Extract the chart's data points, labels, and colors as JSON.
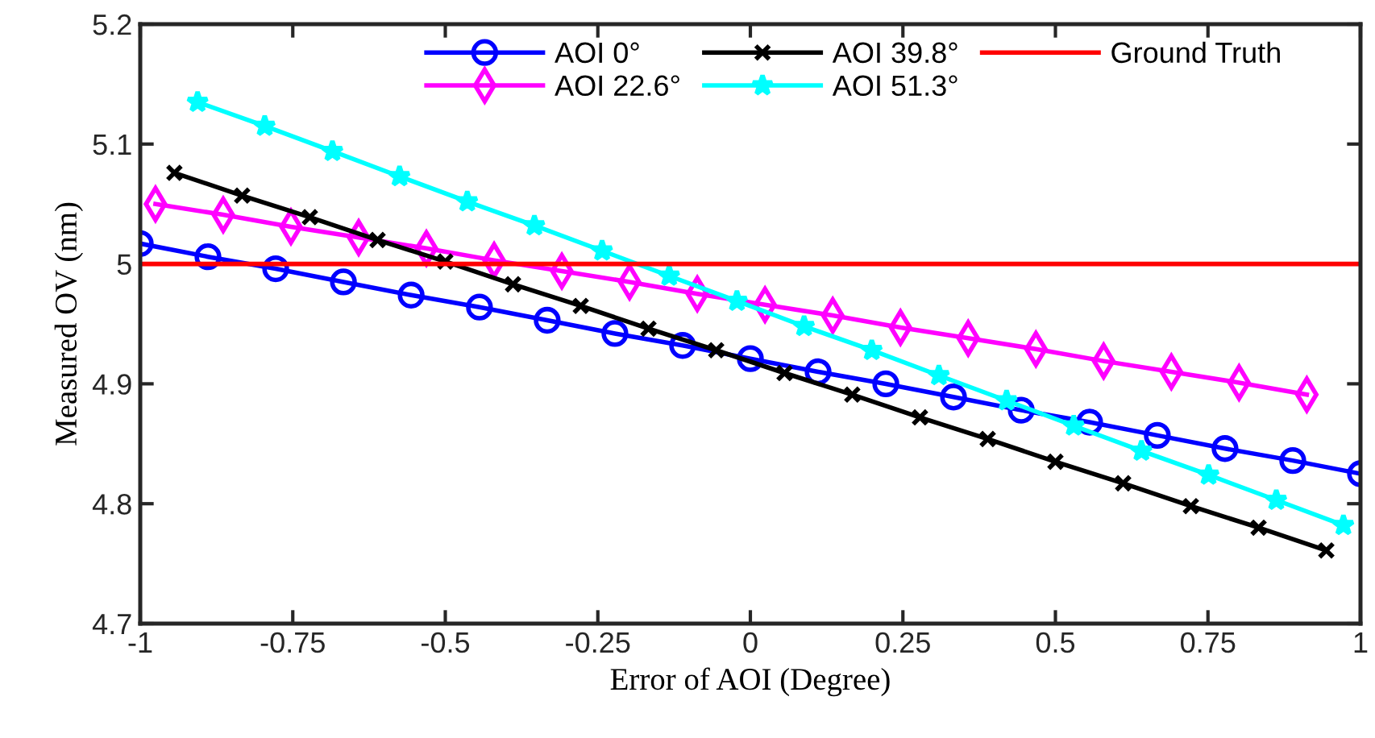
{
  "chart_data": {
    "type": "line",
    "xlabel": "Error of AOI (Degree)",
    "ylabel": "Measured OV (nm)",
    "xlim": [
      -1,
      1
    ],
    "xticks": [
      -1,
      -0.75,
      -0.5,
      -0.25,
      0,
      0.25,
      0.5,
      0.75,
      1
    ],
    "ylim": [
      4.7,
      5.2
    ],
    "yticks": [
      4.7,
      4.8,
      4.9,
      5,
      5.1,
      5.2
    ],
    "grid": false,
    "legend": "top",
    "line_style": "solid",
    "series": [
      {
        "name": "AOI 0°",
        "color": "#0000ff",
        "marker": "circle",
        "x": [
          -1,
          -0.889,
          -0.778,
          -0.667,
          -0.556,
          -0.444,
          -0.333,
          -0.222,
          -0.111,
          0,
          0.111,
          0.222,
          0.333,
          0.444,
          0.556,
          0.667,
          0.778,
          0.889,
          1
        ],
        "values": [
          5.017,
          5.006,
          4.996,
          4.985,
          4.974,
          4.964,
          4.953,
          4.942,
          4.932,
          4.921,
          4.91,
          4.9,
          4.889,
          4.878,
          4.868,
          4.857,
          4.846,
          4.836,
          4.825
        ]
      },
      {
        "name": "AOI 22.6°",
        "color": "#ff00ff",
        "marker": "diamond",
        "x": [
          -0.975,
          -0.864,
          -0.753,
          -0.642,
          -0.531,
          -0.42,
          -0.309,
          -0.198,
          -0.087,
          0.024,
          0.135,
          0.246,
          0.357,
          0.468,
          0.579,
          0.69,
          0.801,
          0.912
        ],
        "values": [
          5.05,
          5.041,
          5.031,
          5.022,
          5.013,
          5.003,
          4.994,
          4.985,
          4.975,
          4.966,
          4.957,
          4.947,
          4.938,
          4.929,
          4.919,
          4.91,
          4.901,
          4.891
        ]
      },
      {
        "name": "AOI 39.8°",
        "color": "#000000",
        "marker": "cross",
        "x": [
          -0.944,
          -0.833,
          -0.722,
          -0.611,
          -0.5,
          -0.389,
          -0.278,
          -0.167,
          -0.056,
          0.056,
          0.167,
          0.278,
          0.389,
          0.5,
          0.611,
          0.722,
          0.833,
          0.944
        ],
        "values": [
          5.076,
          5.057,
          5.039,
          5.02,
          5.002,
          4.983,
          4.965,
          4.946,
          4.928,
          4.909,
          4.891,
          4.872,
          4.854,
          4.835,
          4.817,
          4.798,
          4.78,
          4.761
        ]
      },
      {
        "name": "AOI 51.3°",
        "color": "#00ffff",
        "marker": "star",
        "x": [
          -0.906,
          -0.796,
          -0.685,
          -0.575,
          -0.464,
          -0.354,
          -0.243,
          -0.133,
          -0.022,
          0.088,
          0.199,
          0.309,
          0.42,
          0.53,
          0.641,
          0.751,
          0.862,
          0.972
        ],
        "values": [
          5.135,
          5.115,
          5.094,
          5.073,
          5.052,
          5.032,
          5.011,
          4.99,
          4.969,
          4.948,
          4.928,
          4.907,
          4.886,
          4.865,
          4.844,
          4.824,
          4.803,
          4.782
        ]
      },
      {
        "name": "Ground Truth",
        "color": "#ff0000",
        "marker": "none",
        "x": [
          -1,
          1
        ],
        "values": [
          5,
          5
        ]
      }
    ]
  }
}
